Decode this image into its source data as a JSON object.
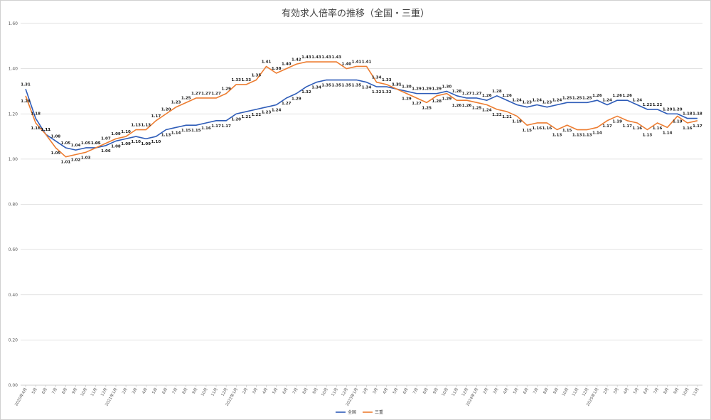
{
  "chart_data": {
    "type": "line",
    "title": "有効求人倍率の推移（全国・三重）",
    "ylim": [
      0,
      1.6
    ],
    "y_ticks": [
      "0.00",
      "0.20",
      "0.40",
      "0.60",
      "0.80",
      "1.00",
      "1.20",
      "1.40",
      "1.60"
    ],
    "grid": true,
    "legend_position": "bottom",
    "x": [
      "2020年4月",
      "5月",
      "6月",
      "7月",
      "8月",
      "9月",
      "10月",
      "11月",
      "12月",
      "2021年1月",
      "2月",
      "3月",
      "4月",
      "5月",
      "6月",
      "7月",
      "8月",
      "9月",
      "10月",
      "11月",
      "12月",
      "2022年1月",
      "2月",
      "3月",
      "4月",
      "5月",
      "6月",
      "7月",
      "8月",
      "9月",
      "10月",
      "11月",
      "12月",
      "2023年1月",
      "2月",
      "3月",
      "4月",
      "5月",
      "6月",
      "7月",
      "8月",
      "9月",
      "10月",
      "11月",
      "12月",
      "2024年1月",
      "2月",
      "3月",
      "4月",
      "5月",
      "6月",
      "7月",
      "8月",
      "9月",
      "10月",
      "11月",
      "12月",
      "2025年1月",
      "2月",
      "3月",
      "4月",
      "5月",
      "6月",
      "7月",
      "8月",
      "9月",
      "10月",
      "11月"
    ],
    "series": [
      {
        "name": "全国",
        "color": "#2e5cb8",
        "values": [
          1.31,
          1.18,
          1.11,
          1.08,
          1.05,
          1.04,
          1.05,
          1.05,
          1.06,
          1.08,
          1.09,
          1.1,
          1.09,
          1.1,
          1.13,
          1.14,
          1.15,
          1.15,
          1.16,
          1.17,
          1.17,
          1.2,
          1.21,
          1.22,
          1.23,
          1.24,
          1.27,
          1.29,
          1.32,
          1.34,
          1.35,
          1.35,
          1.35,
          1.35,
          1.34,
          1.32,
          1.32,
          1.31,
          1.3,
          1.29,
          1.29,
          1.29,
          1.3,
          1.28,
          1.27,
          1.27,
          1.26,
          1.28,
          1.26,
          1.24,
          1.23,
          1.24,
          1.23,
          1.24,
          1.25,
          1.25,
          1.25,
          1.26,
          1.24,
          1.26,
          1.26,
          1.24,
          1.22,
          1.22,
          1.2,
          1.2,
          1.18,
          1.18
        ]
      },
      {
        "name": "三重",
        "color": "#ed7d31",
        "values": [
          1.28,
          1.16,
          1.11,
          1.05,
          1.01,
          1.02,
          1.03,
          1.05,
          1.07,
          1.09,
          1.1,
          1.13,
          1.13,
          1.17,
          1.2,
          1.23,
          1.25,
          1.27,
          1.27,
          1.27,
          1.29,
          1.33,
          1.33,
          1.35,
          1.41,
          1.38,
          1.4,
          1.42,
          1.43,
          1.43,
          1.43,
          1.43,
          1.4,
          1.41,
          1.41,
          1.34,
          1.33,
          1.31,
          1.29,
          1.27,
          1.25,
          1.28,
          1.29,
          1.26,
          1.26,
          1.25,
          1.24,
          1.22,
          1.21,
          1.19,
          1.15,
          1.16,
          1.16,
          1.13,
          1.15,
          1.13,
          1.13,
          1.14,
          1.17,
          1.19,
          1.17,
          1.16,
          1.13,
          1.16,
          1.14,
          1.19,
          1.16,
          1.17
        ]
      }
    ]
  }
}
